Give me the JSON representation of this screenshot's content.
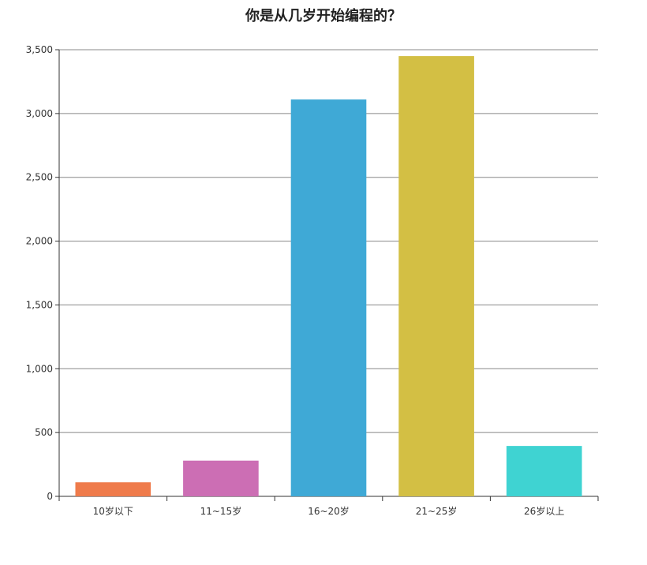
{
  "chart_data": {
    "type": "bar",
    "title": "你是从几岁开始编程的？",
    "xlabel": "",
    "ylabel": "",
    "categories": [
      "10岁以下",
      "11~15岁",
      "16~20岁",
      "21~25岁",
      "26岁以上"
    ],
    "values": [
      110,
      280,
      3110,
      3450,
      395
    ],
    "colors": [
      "#ef7b4b",
      "#cc6eb4",
      "#3fa9d6",
      "#d3bf44",
      "#3fd3d2"
    ],
    "ylim": [
      0,
      3500
    ],
    "yticks": [
      0,
      500,
      1000,
      1500,
      2000,
      2500,
      3000,
      3500
    ],
    "ytick_labels": [
      "0",
      "500",
      "1,000",
      "1,500",
      "2,000",
      "2,500",
      "3,000",
      "3,500"
    ],
    "grid": true,
    "legend": "none"
  }
}
